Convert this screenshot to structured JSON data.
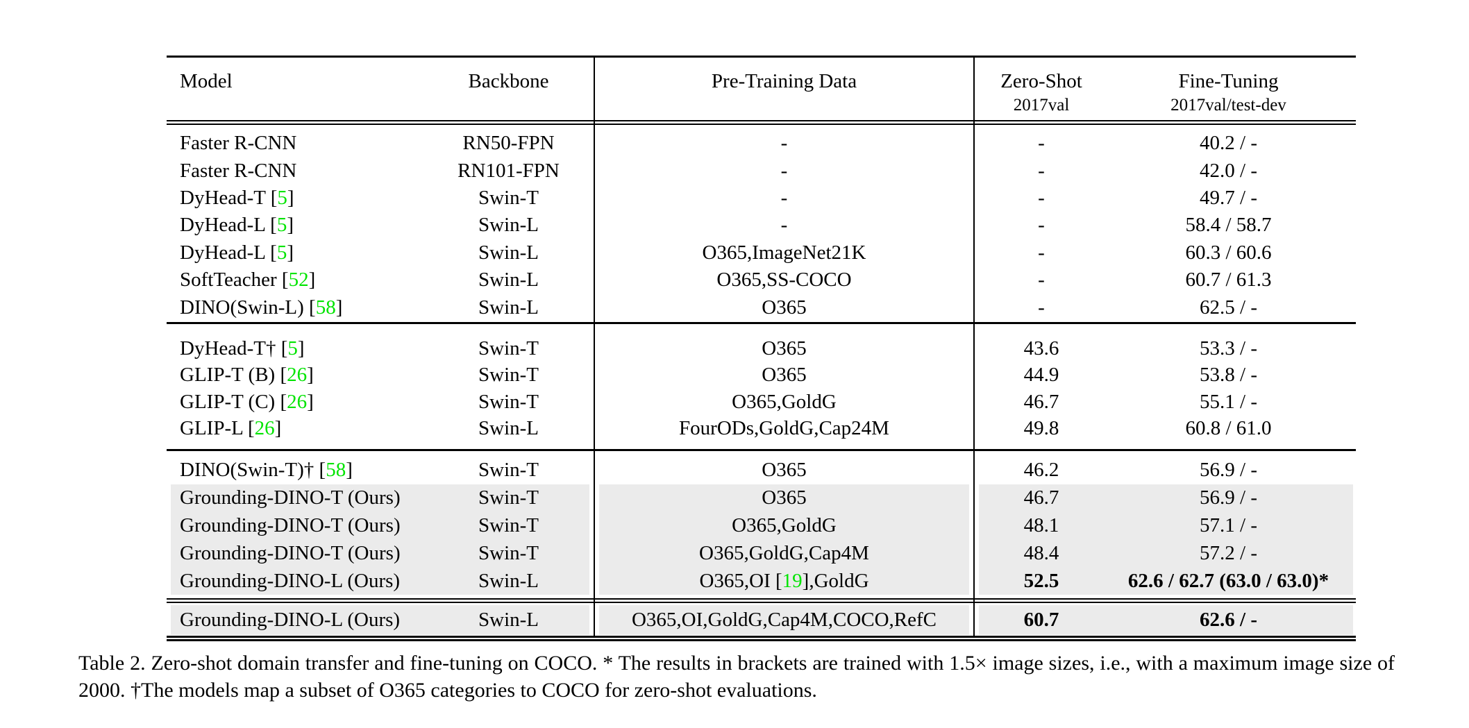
{
  "colors": {
    "citation_green": "#00e400",
    "row_highlight": "#ebebeb",
    "rule_black": "#000000"
  },
  "table": {
    "header": {
      "model": "Model",
      "backbone": "Backbone",
      "pretrain": "Pre-Training Data",
      "zeroshot_title": "Zero-Shot",
      "zeroshot_sub": "2017val",
      "finetune_title": "Fine-Tuning",
      "finetune_sub": "2017val/test-dev"
    },
    "sections": [
      {
        "rows": [
          {
            "model": "Faster R-CNN",
            "backbone": "RN50-FPN",
            "pretrain": "-",
            "zeroshot": "-",
            "finetune": "40.2 / -",
            "highlight": false,
            "bold": false
          },
          {
            "model": "Faster R-CNN",
            "backbone": "RN101-FPN",
            "pretrain": "-",
            "zeroshot": "-",
            "finetune": "42.0 / -",
            "highlight": false,
            "bold": false
          },
          {
            "model": "DyHead-T [5]",
            "backbone": "Swin-T",
            "pretrain": "-",
            "zeroshot": "-",
            "finetune": "49.7 / -",
            "highlight": false,
            "bold": false
          },
          {
            "model": "DyHead-L [5]",
            "backbone": "Swin-L",
            "pretrain": "-",
            "zeroshot": "-",
            "finetune": "58.4 / 58.7",
            "highlight": false,
            "bold": false
          },
          {
            "model": "DyHead-L [5]",
            "backbone": "Swin-L",
            "pretrain": "O365,ImageNet21K",
            "zeroshot": "-",
            "finetune": "60.3 / 60.6",
            "highlight": false,
            "bold": false
          },
          {
            "model": "SoftTeacher [52]",
            "backbone": "Swin-L",
            "pretrain": "O365,SS-COCO",
            "zeroshot": "-",
            "finetune": "60.7 / 61.3",
            "highlight": false,
            "bold": false
          },
          {
            "model": "DINO(Swin-L) [58]",
            "backbone": "Swin-L",
            "pretrain": "O365",
            "zeroshot": "-",
            "finetune": "62.5 / -",
            "highlight": false,
            "bold": false
          }
        ]
      },
      {
        "rows": [
          {
            "model": "DyHead-T† [5]",
            "backbone": "Swin-T",
            "pretrain": "O365",
            "zeroshot": "43.6",
            "finetune": "53.3 / -",
            "highlight": false,
            "bold": false
          },
          {
            "model": "GLIP-T (B) [26]",
            "backbone": "Swin-T",
            "pretrain": "O365",
            "zeroshot": "44.9",
            "finetune": "53.8 / -",
            "highlight": false,
            "bold": false
          },
          {
            "model": "GLIP-T (C) [26]",
            "backbone": "Swin-T",
            "pretrain": "O365,GoldG",
            "zeroshot": "46.7",
            "finetune": "55.1 / -",
            "highlight": false,
            "bold": false
          },
          {
            "model": "GLIP-L [26]",
            "backbone": "Swin-L",
            "pretrain": "FourODs,GoldG,Cap24M",
            "zeroshot": "49.8",
            "finetune": "60.8 / 61.0",
            "highlight": false,
            "bold": false
          }
        ]
      },
      {
        "rows": [
          {
            "model": "DINO(Swin-T)† [58]",
            "backbone": "Swin-T",
            "pretrain": "O365",
            "zeroshot": "46.2",
            "finetune": "56.9 / -",
            "highlight": false,
            "bold": false
          },
          {
            "model": "Grounding-DINO-T (Ours)",
            "backbone": "Swin-T",
            "pretrain": "O365",
            "zeroshot": "46.7",
            "finetune": "56.9 / -",
            "highlight": true,
            "bold": false
          },
          {
            "model": "Grounding-DINO-T (Ours)",
            "backbone": "Swin-T",
            "pretrain": "O365,GoldG",
            "zeroshot": "48.1",
            "finetune": "57.1 / -",
            "highlight": true,
            "bold": false
          },
          {
            "model": "Grounding-DINO-T (Ours)",
            "backbone": "Swin-T",
            "pretrain": "O365,GoldG,Cap4M",
            "zeroshot": "48.4",
            "finetune": "57.2 / -",
            "highlight": true,
            "bold": false
          },
          {
            "model": "Grounding-DINO-L (Ours)",
            "backbone": "Swin-L",
            "pretrain": "O365,OI [19],GoldG",
            "zeroshot": "52.5",
            "finetune": "62.6 / 62.7 (63.0 / 63.0)*",
            "highlight": true,
            "bold": true
          }
        ]
      },
      {
        "rows": [
          {
            "model": "Grounding-DINO-L (Ours)",
            "backbone": "Swin-L",
            "pretrain": "O365,OI,GoldG,Cap4M,COCO,RefC",
            "zeroshot": "60.7",
            "finetune": "62.6 / -",
            "highlight": true,
            "bold": true
          }
        ]
      }
    ]
  },
  "caption": {
    "text": "Table 2.  Zero-shot domain transfer and fine-tuning on COCO. * The results in brackets are trained with 1.5× image sizes, i.e., with a maximum image size of 2000. †The models map a subset of O365 categories to COCO for zero-shot evaluations."
  }
}
